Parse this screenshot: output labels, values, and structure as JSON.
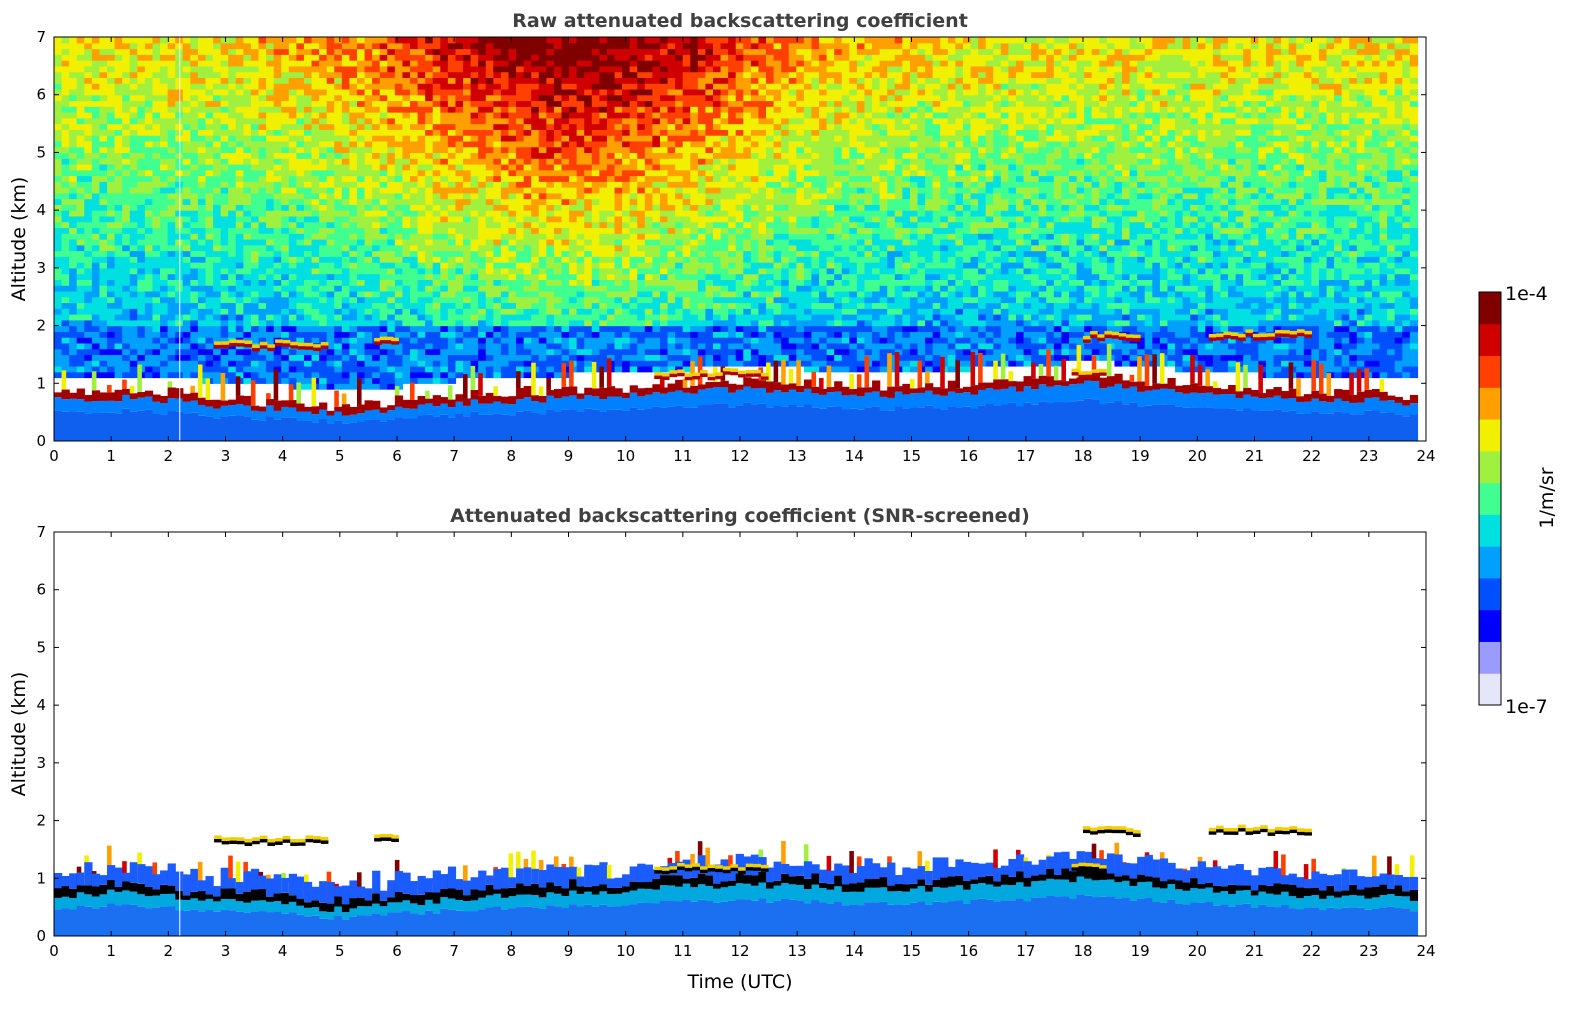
{
  "chart_data": [
    {
      "type": "heatmap",
      "title": "Raw attenuated backscattering coefficient",
      "xlabel": "",
      "ylabel": "Altitude (km)",
      "xlim": [
        0,
        24
      ],
      "ylim": [
        0,
        7
      ],
      "xticks": [
        "0",
        "1",
        "2",
        "3",
        "4",
        "5",
        "6",
        "7",
        "8",
        "9",
        "10",
        "11",
        "12",
        "13",
        "14",
        "15",
        "16",
        "17",
        "18",
        "19",
        "20",
        "21",
        "22",
        "23",
        "24"
      ],
      "yticks": [
        "0",
        "1",
        "2",
        "3",
        "4",
        "5",
        "6",
        "7"
      ],
      "x_end": 23.85,
      "aerosol_layer_top_km": [
        {
          "t": 0,
          "z": 0.7
        },
        {
          "t": 1,
          "z": 0.75
        },
        {
          "t": 2,
          "z": 0.7
        },
        {
          "t": 3,
          "z": 0.6
        },
        {
          "t": 4,
          "z": 0.55
        },
        {
          "t": 5,
          "z": 0.45
        },
        {
          "t": 6,
          "z": 0.55
        },
        {
          "t": 7,
          "z": 0.65
        },
        {
          "t": 8,
          "z": 0.7
        },
        {
          "t": 9,
          "z": 0.75
        },
        {
          "t": 10,
          "z": 0.8
        },
        {
          "t": 11,
          "z": 0.85
        },
        {
          "t": 12,
          "z": 0.9
        },
        {
          "t": 13,
          "z": 0.85
        },
        {
          "t": 14,
          "z": 0.8
        },
        {
          "t": 15,
          "z": 0.8
        },
        {
          "t": 16,
          "z": 0.85
        },
        {
          "t": 17,
          "z": 0.9
        },
        {
          "t": 18,
          "z": 1.0
        },
        {
          "t": 19,
          "z": 0.9
        },
        {
          "t": 20,
          "z": 0.8
        },
        {
          "t": 21,
          "z": 0.75
        },
        {
          "t": 22,
          "z": 0.7
        },
        {
          "t": 23,
          "z": 0.7
        },
        {
          "t": 23.85,
          "z": 0.65
        }
      ],
      "elevated_layers": [
        {
          "t0": 2.8,
          "t1": 4.8,
          "z": 1.6
        },
        {
          "t0": 5.6,
          "t1": 6.0,
          "z": 1.65
        },
        {
          "t0": 10.5,
          "t1": 12.5,
          "z": 1.1
        },
        {
          "t0": 18.0,
          "t1": 19.0,
          "z": 1.75
        },
        {
          "t0": 20.2,
          "t1": 22.0,
          "z": 1.78
        },
        {
          "t0": 17.8,
          "t1": 18.4,
          "z": 1.1
        }
      ],
      "noise_peak_window_utc": [
        6,
        12
      ]
    },
    {
      "type": "heatmap",
      "title": "Attenuated backscattering coefficient (SNR-screened)",
      "xlabel": "Time (UTC)",
      "ylabel": "Altitude (km)",
      "xlim": [
        0,
        24
      ],
      "ylim": [
        0,
        7
      ],
      "xticks": [
        "0",
        "1",
        "2",
        "3",
        "4",
        "5",
        "6",
        "7",
        "8",
        "9",
        "10",
        "11",
        "12",
        "13",
        "14",
        "15",
        "16",
        "17",
        "18",
        "19",
        "20",
        "21",
        "22",
        "23",
        "24"
      ],
      "yticks": [
        "0",
        "1",
        "2",
        "3",
        "4",
        "5",
        "6",
        "7"
      ]
    }
  ],
  "colorbar": {
    "label": "1/m/sr",
    "max_label": "1e-4",
    "min_label": "1e-7",
    "scale": "log",
    "range": [
      1e-07,
      0.0001
    ],
    "colors": [
      "#e6e6fa",
      "#9a9aff",
      "#0000ff",
      "#0050ff",
      "#00a0ff",
      "#00e0e0",
      "#40ff90",
      "#a0f040",
      "#f0f000",
      "#ffa000",
      "#ff4000",
      "#d00000",
      "#800000"
    ]
  },
  "colors": {
    "title": "#404040",
    "ground_band": "#1060f0",
    "aerosol_core": "#000000"
  }
}
